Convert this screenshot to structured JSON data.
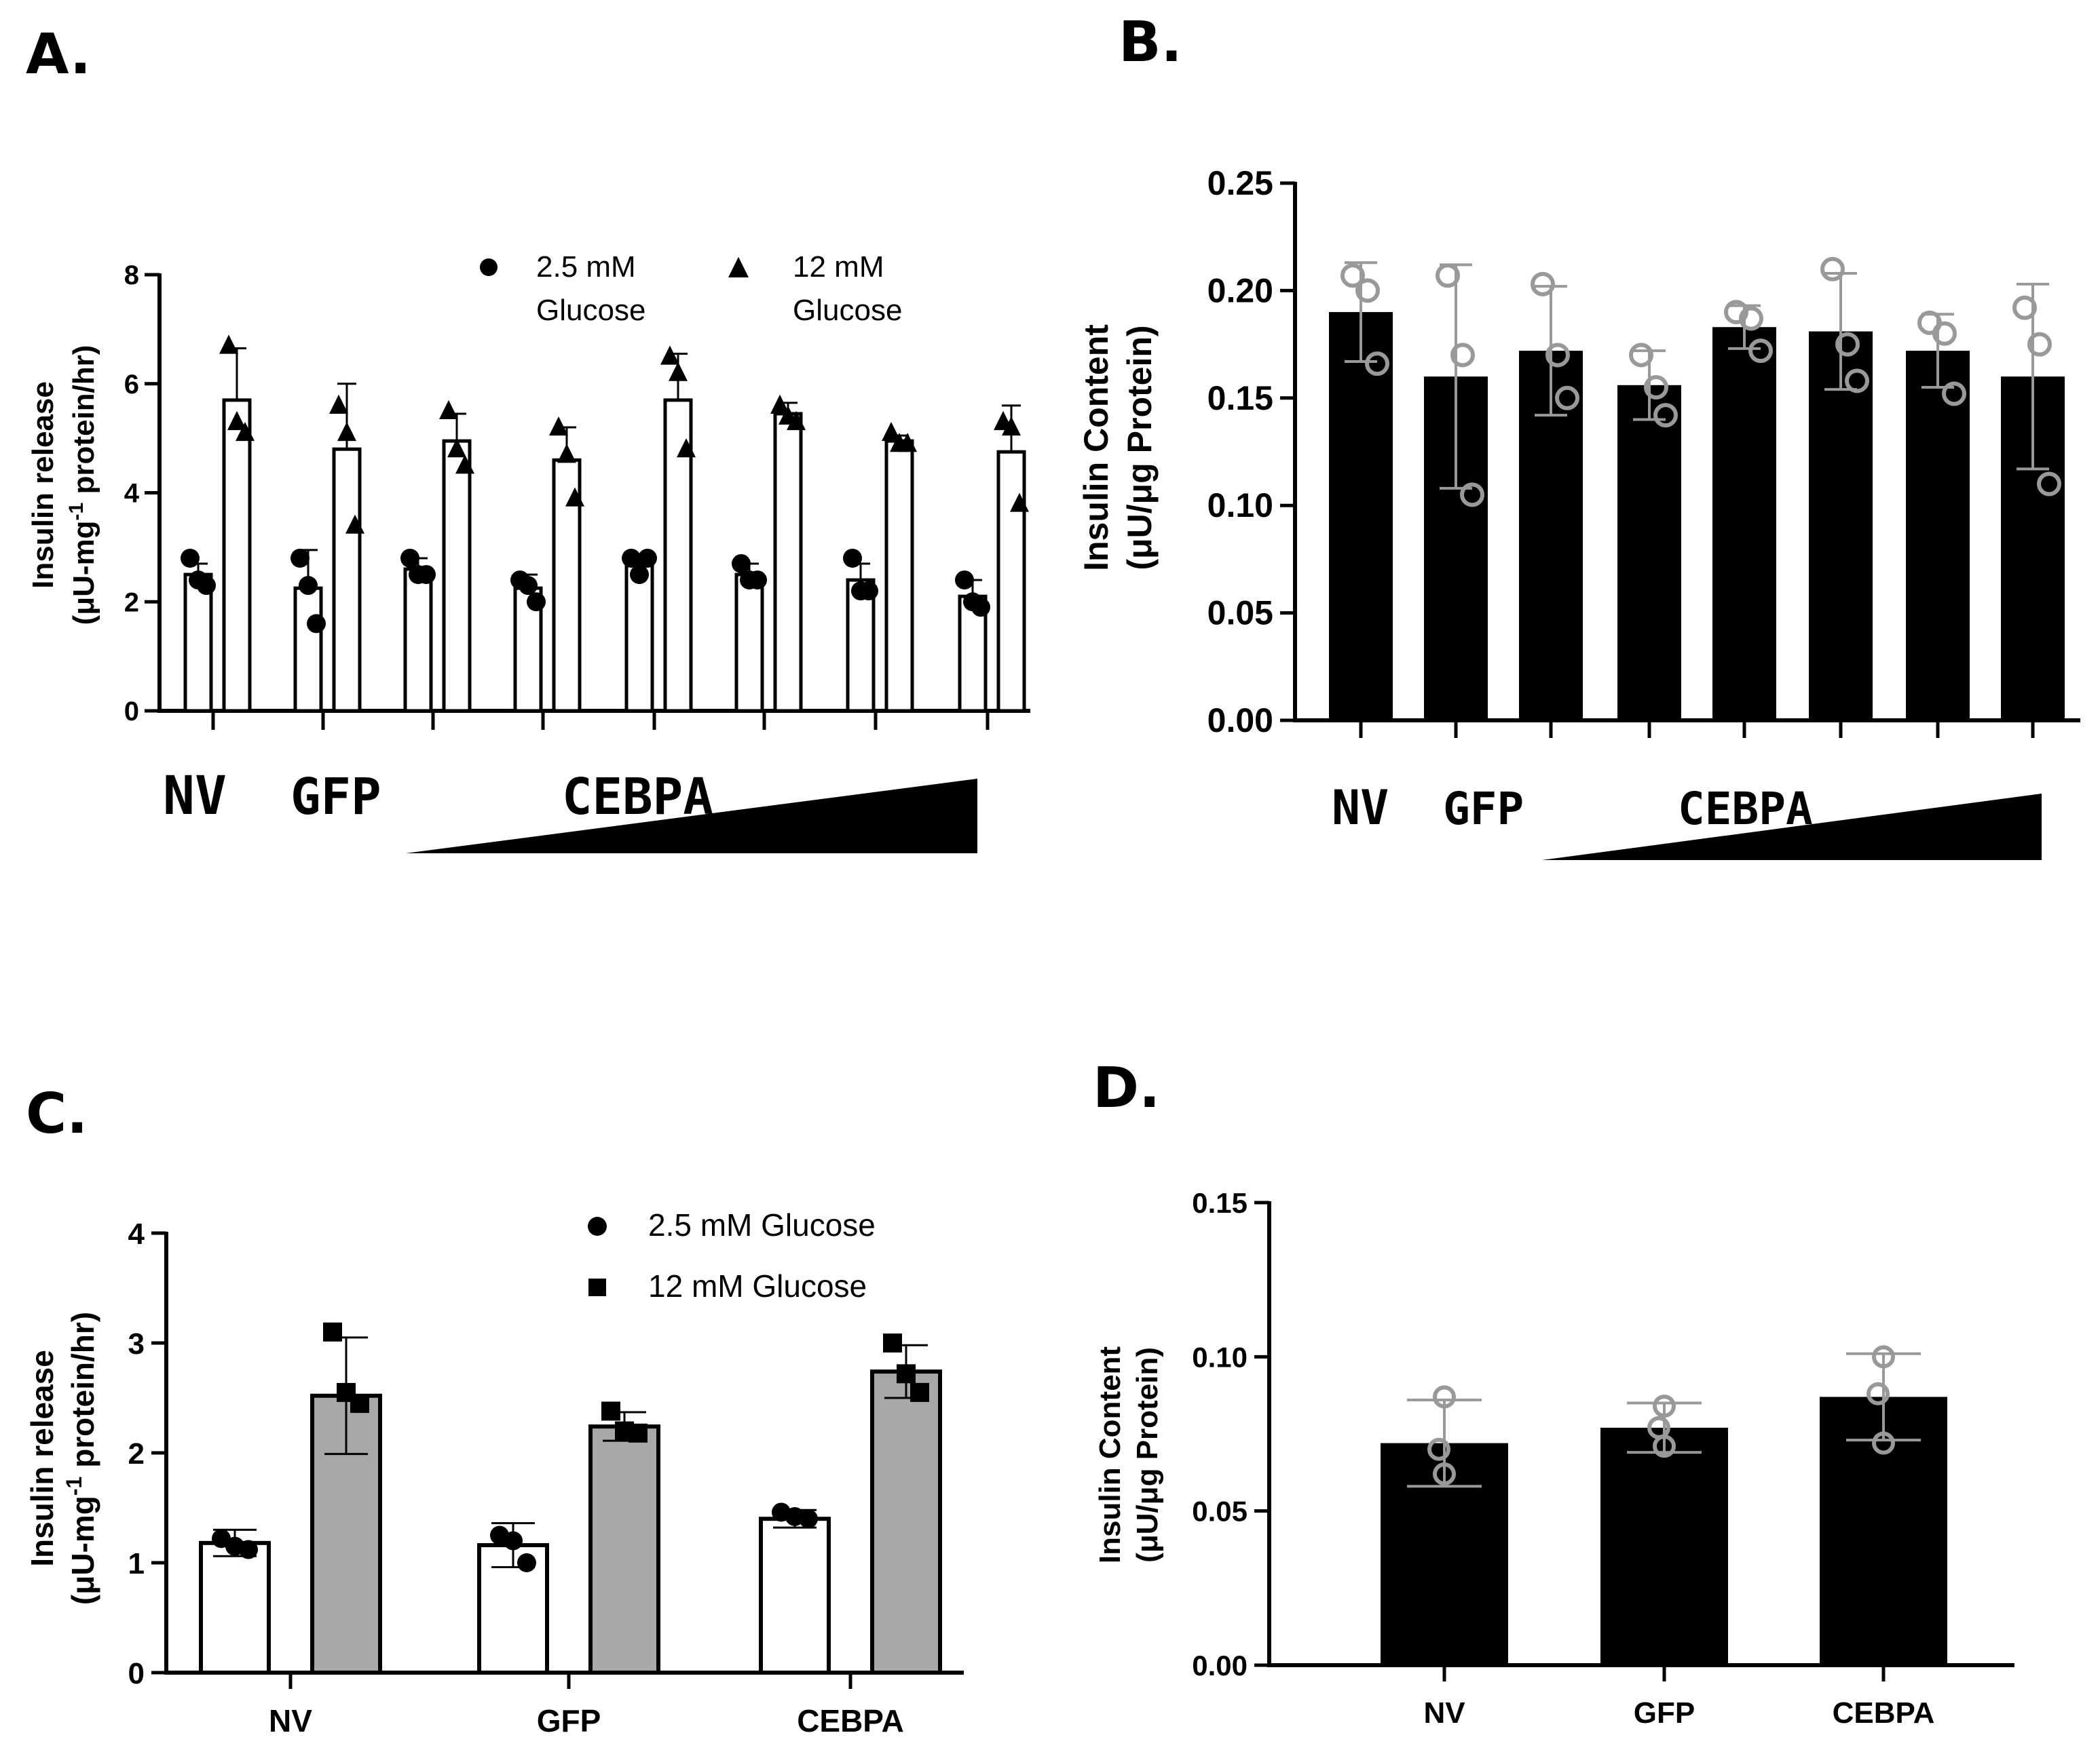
{
  "figure": {
    "panels": [
      "A.",
      "B.",
      "C.",
      "D."
    ]
  },
  "chart_data": [
    {
      "panel": "A.",
      "type": "bar",
      "ylabel_line1": "Insulin release",
      "ylabel_line2_pre": "(μU-mg",
      "ylabel_line2_sup": "-1",
      "ylabel_line2_post": " protein/hr)",
      "ylim": [
        0,
        8
      ],
      "yticks": [
        "0",
        "2",
        "4",
        "6",
        "8"
      ],
      "legend": [
        {
          "marker": "circle",
          "line1": "2.5 mM",
          "line2": "Glucose"
        },
        {
          "marker": "triangle",
          "line1": "12 mM",
          "line2": "Glucose"
        }
      ],
      "condition_labels": [
        "NV",
        "GFP",
        "CEBPA"
      ],
      "series": [
        {
          "name": "2.5 mM Glucose",
          "fill": "#ffffff",
          "marker": "circle",
          "values": [
            2.5,
            2.25,
            2.6,
            2.25,
            2.7,
            2.5,
            2.4,
            2.1
          ],
          "errors": [
            0.2,
            0.7,
            0.2,
            0.25,
            0.1,
            0.2,
            0.3,
            0.3
          ],
          "points": [
            [
              2.8,
              2.4,
              2.3
            ],
            [
              2.8,
              2.3,
              1.6
            ],
            [
              2.8,
              2.5,
              2.5
            ],
            [
              2.4,
              2.3,
              2.0
            ],
            [
              2.8,
              2.5,
              2.8
            ],
            [
              2.7,
              2.4,
              2.4
            ],
            [
              2.8,
              2.2,
              2.2
            ],
            [
              2.4,
              2.0,
              1.9
            ]
          ]
        },
        {
          "name": "12 mM Glucose",
          "fill": "#ffffff",
          "marker": "triangle",
          "values": [
            5.7,
            4.8,
            4.95,
            4.6,
            5.7,
            5.45,
            4.95,
            4.75
          ],
          "errors": [
            0.95,
            1.2,
            0.5,
            0.6,
            0.85,
            0.2,
            0.1,
            0.85
          ],
          "points": [
            [
              6.7,
              5.3,
              5.1
            ],
            [
              5.6,
              5.1,
              3.4
            ],
            [
              5.5,
              4.8,
              4.5
            ],
            [
              5.2,
              4.7,
              3.9
            ],
            [
              6.5,
              6.2,
              4.8
            ],
            [
              5.6,
              5.4,
              5.3
            ],
            [
              5.1,
              4.9,
              4.9
            ],
            [
              5.3,
              5.2,
              3.8
            ]
          ]
        }
      ]
    },
    {
      "panel": "B.",
      "type": "bar",
      "ylabel_line1": "Insulin Content",
      "ylabel_line2": "(μU/μg Protein)",
      "ylim": [
        0,
        0.25
      ],
      "yticks": [
        "0.00",
        "0.05",
        "0.10",
        "0.15",
        "0.20",
        "0.25"
      ],
      "condition_labels": [
        "NV",
        "GFP",
        "CEBPA"
      ],
      "series": [
        {
          "fill": "#000000",
          "point_color": "#999999",
          "values": [
            0.19,
            0.16,
            0.172,
            0.156,
            0.183,
            0.181,
            0.172,
            0.16
          ],
          "errors": [
            0.023,
            0.052,
            0.03,
            0.016,
            0.01,
            0.027,
            0.017,
            0.043
          ],
          "points": [
            [
              0.207,
              0.2,
              0.166
            ],
            [
              0.207,
              0.17,
              0.105
            ],
            [
              0.203,
              0.17,
              0.15
            ],
            [
              0.17,
              0.155,
              0.142
            ],
            [
              0.19,
              0.187,
              0.172
            ],
            [
              0.21,
              0.175,
              0.158
            ],
            [
              0.185,
              0.18,
              0.152
            ],
            [
              0.192,
              0.175,
              0.11
            ]
          ]
        }
      ]
    },
    {
      "panel": "C.",
      "type": "bar",
      "ylabel_line1": "Insulin release",
      "ylabel_line2_pre": "(μU-mg",
      "ylabel_line2_sup": "-1",
      "ylabel_line2_post": " protein/hr)",
      "ylim": [
        0,
        4
      ],
      "yticks": [
        "0",
        "1",
        "2",
        "3",
        "4"
      ],
      "categories": [
        "NV",
        "GFP",
        "CEBPA"
      ],
      "legend": [
        {
          "marker": "circle",
          "label": "2.5 mM Glucose"
        },
        {
          "marker": "square",
          "label": "12 mM Glucose"
        }
      ],
      "series": [
        {
          "name": "2.5 mM Glucose",
          "fill": "#ffffff",
          "marker": "circle",
          "values": [
            1.18,
            1.16,
            1.4
          ],
          "errors": [
            0.12,
            0.2,
            0.08
          ],
          "points": [
            [
              1.22,
              1.15,
              1.12
            ],
            [
              1.25,
              1.2,
              1.0
            ],
            [
              1.46,
              1.42,
              1.4
            ]
          ]
        },
        {
          "name": "12 mM Glucose",
          "fill": "#a8a8aa",
          "marker": "square",
          "values": [
            2.52,
            2.24,
            2.74
          ],
          "errors": [
            0.53,
            0.13,
            0.24
          ],
          "points": [
            [
              3.1,
              2.55,
              2.45
            ],
            [
              2.38,
              2.2,
              2.18
            ],
            [
              3.0,
              2.72,
              2.55
            ]
          ]
        }
      ]
    },
    {
      "panel": "D.",
      "type": "bar",
      "ylabel_line1": "Insulin Content",
      "ylabel_line2": "(μU/μg Protein)",
      "ylim": [
        0,
        0.15
      ],
      "yticks": [
        "0.00",
        "0.05",
        "0.10",
        "0.15"
      ],
      "categories": [
        "NV",
        "GFP",
        "CEBPA"
      ],
      "series": [
        {
          "fill": "#000000",
          "point_color": "#999999",
          "values": [
            0.072,
            0.077,
            0.087
          ],
          "errors": [
            0.014,
            0.008,
            0.014
          ],
          "points": [
            [
              0.087,
              0.07,
              0.062
            ],
            [
              0.084,
              0.077,
              0.071
            ],
            [
              0.1,
              0.088,
              0.072
            ]
          ]
        }
      ]
    }
  ]
}
